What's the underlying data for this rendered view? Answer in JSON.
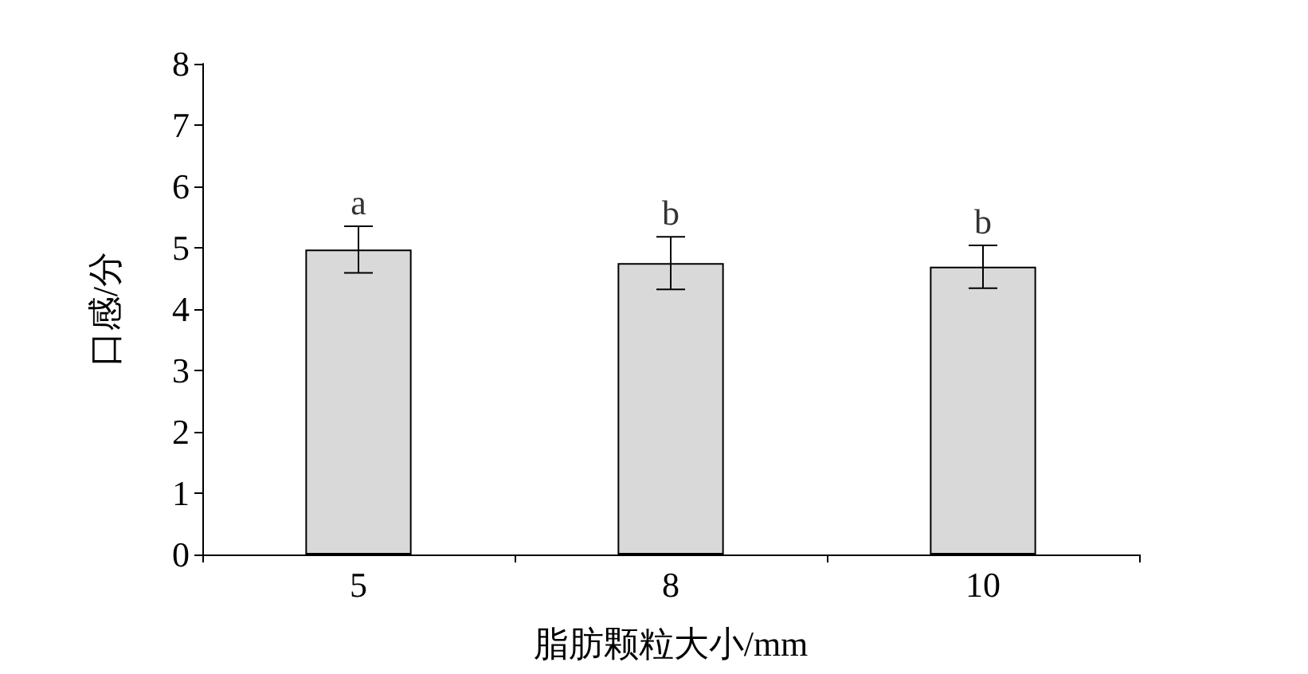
{
  "chart_data": {
    "type": "bar",
    "xlabel": "脂肪颗粒大小/mm",
    "ylabel": "口感/分",
    "categories": [
      "5",
      "8",
      "10"
    ],
    "series": [
      {
        "color": "#d9d9d9",
        "values": [
          4.97,
          4.75,
          4.69
        ],
        "errors": [
          0.38,
          0.43,
          0.35
        ]
      }
    ],
    "ylim": [
      0,
      8
    ],
    "yticks": [
      0,
      1,
      2,
      3,
      4,
      5,
      6,
      7,
      8
    ],
    "grid": false,
    "annotations": [
      {
        "text": "a",
        "x": "5",
        "y": 5.35
      },
      {
        "text": "b",
        "x": "8",
        "y": 5.18
      },
      {
        "text": "b",
        "x": "10",
        "y": 5.04
      }
    ]
  }
}
